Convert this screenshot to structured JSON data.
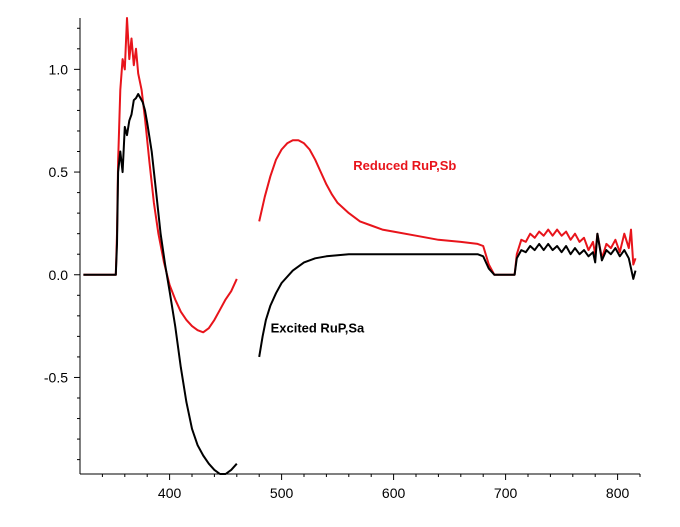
{
  "chart_data": {
    "type": "line",
    "title": "",
    "xlabel": "",
    "ylabel": "",
    "xlim": [
      320,
      820
    ],
    "ylim": [
      -0.97,
      1.25
    ],
    "x_ticks": [
      400,
      500,
      600,
      700,
      800
    ],
    "y_ticks": [
      -0.5,
      0.0,
      0.5,
      1.0
    ],
    "x_tick_labels": [
      "400",
      "500",
      "600",
      "700",
      "800"
    ],
    "y_tick_labels": [
      "-0.5",
      "0.0",
      "0.5",
      "1.0"
    ],
    "grid": false,
    "legend": "none",
    "colors": {
      "red": "#e8141b",
      "black": "#000000",
      "axis": "#000000"
    },
    "annotations": [
      {
        "text": "Reduced RuP,Sb",
        "x": 610,
        "y": 0.51,
        "color": "#e8141b"
      },
      {
        "text": "Excited RuP,Sa",
        "x": 532,
        "y": -0.28,
        "color": "#000000"
      }
    ],
    "series": [
      {
        "color": "#e8141b",
        "segments": [
          [
            [
              323,
              0
            ],
            [
              340,
              0
            ],
            [
              352,
              0
            ],
            [
              353,
              0.2
            ],
            [
              354,
              0.55
            ],
            [
              356,
              0.9
            ],
            [
              358,
              1.05
            ],
            [
              360,
              1.0
            ],
            [
              362,
              1.25
            ],
            [
              364,
              1.05
            ],
            [
              366,
              1.15
            ],
            [
              368,
              1.02
            ],
            [
              370,
              1.1
            ],
            [
              372,
              0.98
            ],
            [
              375,
              0.9
            ],
            [
              378,
              0.76
            ],
            [
              382,
              0.55
            ],
            [
              386,
              0.35
            ],
            [
              390,
              0.2
            ],
            [
              395,
              0.06
            ],
            [
              400,
              -0.05
            ],
            [
              405,
              -0.12
            ],
            [
              410,
              -0.18
            ],
            [
              415,
              -0.22
            ],
            [
              420,
              -0.25
            ],
            [
              425,
              -0.27
            ],
            [
              430,
              -0.28
            ],
            [
              435,
              -0.26
            ],
            [
              440,
              -0.22
            ],
            [
              445,
              -0.17
            ],
            [
              450,
              -0.12
            ],
            [
              455,
              -0.08
            ],
            [
              460,
              -0.02
            ]
          ],
          [
            [
              480,
              0.26
            ],
            [
              485,
              0.38
            ],
            [
              490,
              0.48
            ],
            [
              495,
              0.56
            ],
            [
              500,
              0.61
            ],
            [
              505,
              0.64
            ],
            [
              510,
              0.655
            ],
            [
              515,
              0.655
            ],
            [
              520,
              0.64
            ],
            [
              525,
              0.61
            ],
            [
              530,
              0.56
            ],
            [
              535,
              0.5
            ],
            [
              540,
              0.44
            ],
            [
              545,
              0.39
            ],
            [
              550,
              0.35
            ],
            [
              560,
              0.3
            ],
            [
              570,
              0.26
            ],
            [
              580,
              0.24
            ],
            [
              590,
              0.22
            ],
            [
              600,
              0.21
            ],
            [
              620,
              0.19
            ],
            [
              640,
              0.17
            ],
            [
              660,
              0.16
            ],
            [
              675,
              0.15
            ],
            [
              680,
              0.14
            ],
            [
              685,
              0.05
            ],
            [
              690,
              0
            ],
            [
              700,
              0
            ],
            [
              708,
              0
            ],
            [
              710,
              0.1
            ],
            [
              714,
              0.17
            ],
            [
              718,
              0.16
            ],
            [
              722,
              0.2
            ],
            [
              726,
              0.18
            ],
            [
              730,
              0.21
            ],
            [
              734,
              0.19
            ],
            [
              738,
              0.22
            ],
            [
              742,
              0.19
            ],
            [
              746,
              0.22
            ],
            [
              750,
              0.19
            ],
            [
              754,
              0.21
            ],
            [
              758,
              0.17
            ],
            [
              762,
              0.2
            ],
            [
              766,
              0.16
            ],
            [
              770,
              0.18
            ],
            [
              774,
              0.12
            ],
            [
              778,
              0.16
            ],
            [
              780,
              0.1
            ],
            [
              782,
              0.2
            ],
            [
              786,
              0.08
            ],
            [
              790,
              0.15
            ],
            [
              794,
              0.13
            ],
            [
              798,
              0.17
            ],
            [
              802,
              0.11
            ],
            [
              806,
              0.2
            ],
            [
              810,
              0.13
            ],
            [
              812,
              0.22
            ],
            [
              814,
              0.05
            ],
            [
              816,
              0.08
            ]
          ]
        ]
      },
      {
        "color": "#000000",
        "segments": [
          [
            [
              323,
              0
            ],
            [
              340,
              0
            ],
            [
              352,
              0
            ],
            [
              353,
              0.15
            ],
            [
              354,
              0.5
            ],
            [
              356,
              0.6
            ],
            [
              358,
              0.5
            ],
            [
              360,
              0.72
            ],
            [
              362,
              0.68
            ],
            [
              364,
              0.75
            ],
            [
              366,
              0.78
            ],
            [
              368,
              0.85
            ],
            [
              370,
              0.86
            ],
            [
              372,
              0.88
            ],
            [
              374,
              0.86
            ],
            [
              376,
              0.84
            ],
            [
              378,
              0.8
            ],
            [
              380,
              0.74
            ],
            [
              384,
              0.6
            ],
            [
              388,
              0.4
            ],
            [
              392,
              0.2
            ],
            [
              396,
              0.05
            ],
            [
              400,
              -0.08
            ],
            [
              405,
              -0.25
            ],
            [
              410,
              -0.45
            ],
            [
              415,
              -0.62
            ],
            [
              420,
              -0.75
            ],
            [
              425,
              -0.83
            ],
            [
              430,
              -0.88
            ],
            [
              435,
              -0.92
            ],
            [
              440,
              -0.95
            ],
            [
              445,
              -0.97
            ],
            [
              450,
              -0.97
            ],
            [
              455,
              -0.95
            ],
            [
              460,
              -0.92
            ]
          ],
          [
            [
              480,
              -0.4
            ],
            [
              483,
              -0.3
            ],
            [
              486,
              -0.22
            ],
            [
              490,
              -0.15
            ],
            [
              495,
              -0.09
            ],
            [
              500,
              -0.04
            ],
            [
              510,
              0.02
            ],
            [
              520,
              0.06
            ],
            [
              530,
              0.08
            ],
            [
              540,
              0.09
            ],
            [
              550,
              0.095
            ],
            [
              560,
              0.1
            ],
            [
              580,
              0.1
            ],
            [
              600,
              0.1
            ],
            [
              620,
              0.1
            ],
            [
              640,
              0.1
            ],
            [
              660,
              0.1
            ],
            [
              675,
              0.1
            ],
            [
              680,
              0.09
            ],
            [
              685,
              0.03
            ],
            [
              690,
              0
            ],
            [
              700,
              0
            ],
            [
              708,
              0
            ],
            [
              710,
              0.08
            ],
            [
              714,
              0.12
            ],
            [
              718,
              0.11
            ],
            [
              722,
              0.14
            ],
            [
              726,
              0.12
            ],
            [
              730,
              0.15
            ],
            [
              734,
              0.12
            ],
            [
              738,
              0.15
            ],
            [
              742,
              0.12
            ],
            [
              746,
              0.14
            ],
            [
              750,
              0.11
            ],
            [
              754,
              0.14
            ],
            [
              758,
              0.1
            ],
            [
              762,
              0.13
            ],
            [
              766,
              0.1
            ],
            [
              770,
              0.12
            ],
            [
              774,
              0.09
            ],
            [
              778,
              0.11
            ],
            [
              780,
              0.06
            ],
            [
              782,
              0.2
            ],
            [
              786,
              0.07
            ],
            [
              790,
              0.12
            ],
            [
              794,
              0.1
            ],
            [
              798,
              0.13
            ],
            [
              802,
              0.09
            ],
            [
              806,
              0.12
            ],
            [
              810,
              0.08
            ],
            [
              814,
              -0.02
            ],
            [
              816,
              0.02
            ]
          ]
        ]
      }
    ]
  }
}
